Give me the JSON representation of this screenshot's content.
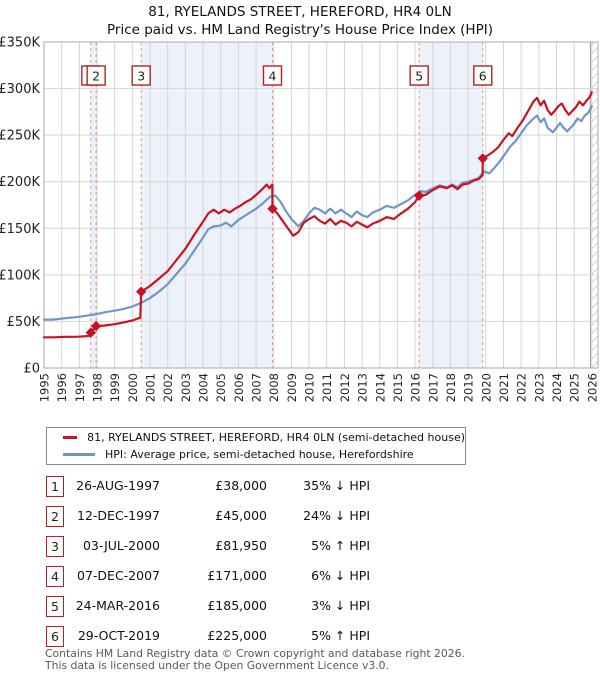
{
  "title": "81, RYELANDS STREET, HEREFORD, HR4 0LN",
  "subtitle": "Price paid vs. HM Land Registry's House Price Index (HPI)",
  "legend": {
    "series1": "81, RYELANDS STREET, HEREFORD, HR4 0LN (semi-detached house)",
    "series2": "HPI: Average price, semi-detached house, Herefordshire"
  },
  "colors": {
    "price_line": "#cc1122",
    "hpi_line": "#7096c8",
    "sale_dashed_line": "#ef8f8f",
    "sale_badge_border": "#b22222",
    "ownership_band": "#edf2fa",
    "gridline": "#d4d4d4",
    "plot_border": "#aaaaaa",
    "hatch": "#bbbbbb"
  },
  "footer": {
    "line1": "Contains HM Land Registry data © Crown copyright and database right 2026.",
    "line2": "This data is licensed under the Open Government Licence v3.0."
  },
  "chart_data": {
    "type": "line",
    "title": "81, RYELANDS STREET, HEREFORD, HR4 0LN — Price paid vs. HPI",
    "xlabel": "",
    "ylabel": "",
    "x_domain": [
      1995,
      2026.35
    ],
    "y_domain": [
      0,
      350000
    ],
    "grid": true,
    "legend_position": "below",
    "x_ticks": [
      1995,
      1996,
      1997,
      1998,
      1999,
      2000,
      2001,
      2002,
      2003,
      2004,
      2005,
      2006,
      2007,
      2008,
      2009,
      2010,
      2011,
      2012,
      2013,
      2014,
      2015,
      2016,
      2017,
      2018,
      2019,
      2020,
      2021,
      2022,
      2023,
      2024,
      2025,
      2026
    ],
    "y_ticks": [
      {
        "value": 0,
        "label": "£0"
      },
      {
        "value": 50000,
        "label": "£50K"
      },
      {
        "value": 100000,
        "label": "£100K"
      },
      {
        "value": 150000,
        "label": "£150K"
      },
      {
        "value": 200000,
        "label": "£200K"
      },
      {
        "value": 250000,
        "label": "£250K"
      },
      {
        "value": 300000,
        "label": "£300K"
      },
      {
        "value": 350000,
        "label": "£350K"
      }
    ],
    "ownership_bands": [
      [
        1997.65,
        1997.95
      ],
      [
        2000.5,
        2007.93
      ],
      [
        2016.23,
        2019.83
      ]
    ],
    "future_band_start": 2025.92,
    "sales": [
      {
        "num": "1",
        "date": "26-AUG-1997",
        "price": "£38,000",
        "delta": "35% ↓ HPI",
        "year": 1997.65,
        "value": 38000
      },
      {
        "num": "2",
        "date": "12-DEC-1997",
        "price": "£45,000",
        "delta": "24% ↓ HPI",
        "year": 1997.95,
        "value": 45000
      },
      {
        "num": "3",
        "date": "03-JUL-2000",
        "price": "£81,950",
        "delta": "5% ↑ HPI",
        "year": 2000.5,
        "value": 81950
      },
      {
        "num": "4",
        "date": "07-DEC-2007",
        "price": "£171,000",
        "delta": "6% ↓ HPI",
        "year": 2007.93,
        "value": 171000
      },
      {
        "num": "5",
        "date": "24-MAR-2016",
        "price": "£185,000",
        "delta": "3% ↓ HPI",
        "year": 2016.23,
        "value": 185000
      },
      {
        "num": "6",
        "date": "29-OCT-2019",
        "price": "£225,000",
        "delta": "5% ↑ HPI",
        "year": 2019.83,
        "value": 225000
      }
    ],
    "series": [
      {
        "name": "81, RYELANDS STREET, HEREFORD, HR4 0LN (semi-detached house)",
        "color": "#cc1122",
        "points": [
          [
            1995.0,
            33000
          ],
          [
            1995.6,
            33000
          ],
          [
            1996.2,
            33500
          ],
          [
            1996.8,
            33500
          ],
          [
            1997.3,
            34000
          ],
          [
            1997.6,
            34500
          ],
          [
            1997.65,
            38000
          ],
          [
            1997.95,
            45000
          ],
          [
            1998.4,
            45500
          ],
          [
            1999.0,
            47000
          ],
          [
            1999.5,
            49000
          ],
          [
            2000.0,
            51000
          ],
          [
            2000.45,
            54000
          ],
          [
            2000.5,
            81950
          ],
          [
            2001.0,
            88000
          ],
          [
            2001.5,
            96000
          ],
          [
            2002.0,
            104000
          ],
          [
            2002.5,
            116000
          ],
          [
            2003.0,
            128000
          ],
          [
            2003.5,
            143000
          ],
          [
            2004.0,
            157000
          ],
          [
            2004.3,
            166000
          ],
          [
            2004.6,
            170000
          ],
          [
            2004.9,
            166000
          ],
          [
            2005.2,
            170000
          ],
          [
            2005.5,
            167000
          ],
          [
            2005.8,
            171000
          ],
          [
            2006.1,
            174000
          ],
          [
            2006.4,
            178000
          ],
          [
            2006.7,
            181000
          ],
          [
            2007.0,
            186000
          ],
          [
            2007.3,
            191000
          ],
          [
            2007.6,
            197000
          ],
          [
            2007.75,
            193000
          ],
          [
            2007.92,
            197000
          ],
          [
            2007.93,
            171000
          ],
          [
            2008.2,
            166000
          ],
          [
            2008.5,
            158000
          ],
          [
            2008.8,
            150000
          ],
          [
            2009.1,
            142000
          ],
          [
            2009.4,
            146000
          ],
          [
            2009.7,
            156000
          ],
          [
            2010.0,
            160000
          ],
          [
            2010.3,
            163000
          ],
          [
            2010.6,
            158000
          ],
          [
            2010.9,
            155000
          ],
          [
            2011.2,
            160000
          ],
          [
            2011.5,
            154000
          ],
          [
            2011.8,
            158000
          ],
          [
            2012.1,
            156000
          ],
          [
            2012.4,
            152000
          ],
          [
            2012.7,
            157000
          ],
          [
            2013.0,
            154000
          ],
          [
            2013.3,
            151000
          ],
          [
            2013.6,
            155000
          ],
          [
            2014.0,
            158000
          ],
          [
            2014.4,
            162000
          ],
          [
            2014.8,
            160000
          ],
          [
            2015.2,
            166000
          ],
          [
            2015.6,
            171000
          ],
          [
            2016.0,
            178000
          ],
          [
            2016.23,
            185000
          ],
          [
            2016.6,
            186000
          ],
          [
            2017.0,
            191000
          ],
          [
            2017.4,
            195000
          ],
          [
            2017.8,
            193000
          ],
          [
            2018.1,
            196000
          ],
          [
            2018.4,
            192000
          ],
          [
            2018.7,
            197000
          ],
          [
            2019.0,
            198000
          ],
          [
            2019.3,
            201000
          ],
          [
            2019.6,
            203000
          ],
          [
            2019.82,
            207000
          ],
          [
            2019.83,
            225000
          ],
          [
            2020.1,
            228000
          ],
          [
            2020.4,
            232000
          ],
          [
            2020.7,
            237000
          ],
          [
            2021.0,
            245000
          ],
          [
            2021.3,
            252000
          ],
          [
            2021.5,
            249000
          ],
          [
            2021.8,
            258000
          ],
          [
            2022.1,
            266000
          ],
          [
            2022.4,
            276000
          ],
          [
            2022.7,
            286000
          ],
          [
            2022.9,
            290000
          ],
          [
            2023.1,
            282000
          ],
          [
            2023.3,
            287000
          ],
          [
            2023.5,
            277000
          ],
          [
            2023.7,
            272000
          ],
          [
            2023.9,
            276000
          ],
          [
            2024.1,
            281000
          ],
          [
            2024.3,
            284000
          ],
          [
            2024.5,
            277000
          ],
          [
            2024.7,
            272000
          ],
          [
            2024.9,
            276000
          ],
          [
            2025.1,
            280000
          ],
          [
            2025.3,
            286000
          ],
          [
            2025.5,
            282000
          ],
          [
            2025.7,
            287000
          ],
          [
            2025.88,
            291000
          ],
          [
            2026.0,
            296000
          ]
        ]
      },
      {
        "name": "HPI: Average price, semi-detached house, Herefordshire",
        "color": "#7096c8",
        "points": [
          [
            1995.0,
            52000
          ],
          [
            1995.5,
            52000
          ],
          [
            1996.0,
            53000
          ],
          [
            1996.5,
            54000
          ],
          [
            1997.0,
            55000
          ],
          [
            1997.5,
            56500
          ],
          [
            1998.0,
            58000
          ],
          [
            1998.5,
            60000
          ],
          [
            1999.0,
            61500
          ],
          [
            1999.5,
            63500
          ],
          [
            2000.0,
            66000
          ],
          [
            2000.5,
            70000
          ],
          [
            2001.0,
            75000
          ],
          [
            2001.5,
            82000
          ],
          [
            2002.0,
            90000
          ],
          [
            2002.5,
            101000
          ],
          [
            2003.0,
            112000
          ],
          [
            2003.5,
            126000
          ],
          [
            2004.0,
            140000
          ],
          [
            2004.3,
            149000
          ],
          [
            2004.6,
            152000
          ],
          [
            2005.0,
            153000
          ],
          [
            2005.3,
            156000
          ],
          [
            2005.6,
            152000
          ],
          [
            2006.0,
            159000
          ],
          [
            2006.5,
            165000
          ],
          [
            2007.0,
            171000
          ],
          [
            2007.4,
            177000
          ],
          [
            2007.8,
            184000
          ],
          [
            2008.1,
            185000
          ],
          [
            2008.4,
            178000
          ],
          [
            2008.7,
            168000
          ],
          [
            2009.0,
            160000
          ],
          [
            2009.4,
            152000
          ],
          [
            2009.7,
            158000
          ],
          [
            2010.0,
            166000
          ],
          [
            2010.3,
            172000
          ],
          [
            2010.6,
            170000
          ],
          [
            2010.9,
            166000
          ],
          [
            2011.2,
            171000
          ],
          [
            2011.5,
            166000
          ],
          [
            2011.8,
            170000
          ],
          [
            2012.1,
            166000
          ],
          [
            2012.4,
            162000
          ],
          [
            2012.7,
            168000
          ],
          [
            2013.0,
            164000
          ],
          [
            2013.3,
            162000
          ],
          [
            2013.6,
            167000
          ],
          [
            2014.0,
            170000
          ],
          [
            2014.4,
            174000
          ],
          [
            2014.8,
            172000
          ],
          [
            2015.2,
            176000
          ],
          [
            2015.6,
            180000
          ],
          [
            2016.0,
            186000
          ],
          [
            2016.3,
            190000
          ],
          [
            2016.6,
            189000
          ],
          [
            2017.0,
            193000
          ],
          [
            2017.4,
            196000
          ],
          [
            2017.8,
            194000
          ],
          [
            2018.1,
            197000
          ],
          [
            2018.4,
            194000
          ],
          [
            2018.7,
            199000
          ],
          [
            2019.0,
            200000
          ],
          [
            2019.3,
            202000
          ],
          [
            2019.6,
            204000
          ],
          [
            2019.9,
            211000
          ],
          [
            2020.2,
            209000
          ],
          [
            2020.5,
            215000
          ],
          [
            2020.8,
            222000
          ],
          [
            2021.1,
            230000
          ],
          [
            2021.4,
            238000
          ],
          [
            2021.7,
            244000
          ],
          [
            2022.0,
            252000
          ],
          [
            2022.3,
            260000
          ],
          [
            2022.6,
            266000
          ],
          [
            2022.9,
            271000
          ],
          [
            2023.1,
            264000
          ],
          [
            2023.3,
            268000
          ],
          [
            2023.5,
            258000
          ],
          [
            2023.8,
            253000
          ],
          [
            2024.0,
            258000
          ],
          [
            2024.2,
            263000
          ],
          [
            2024.4,
            258000
          ],
          [
            2024.6,
            254000
          ],
          [
            2024.8,
            258000
          ],
          [
            2025.0,
            262000
          ],
          [
            2025.2,
            268000
          ],
          [
            2025.4,
            265000
          ],
          [
            2025.6,
            271000
          ],
          [
            2025.8,
            274000
          ],
          [
            2026.0,
            281000
          ]
        ]
      }
    ]
  }
}
